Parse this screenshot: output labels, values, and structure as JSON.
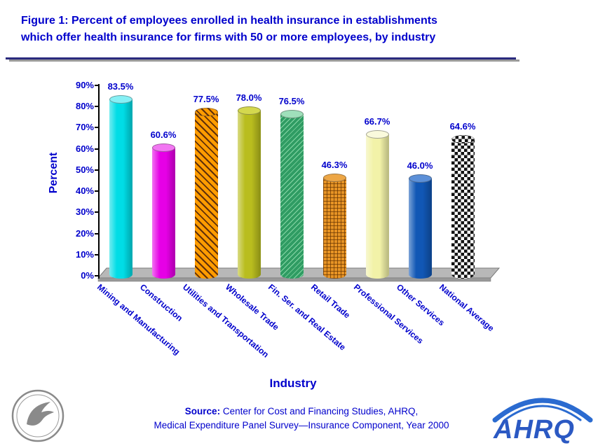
{
  "title": {
    "line1": "Figure 1: Percent of employees enrolled in health insurance in establishments",
    "line2": "which offer health insurance for firms with 50 or more employees, by industry"
  },
  "chart_data": {
    "type": "bar",
    "title": "Percent of employees enrolled in health insurance in establishments which offer health insurance for firms with 50 or more employees, by industry",
    "categories": [
      "Mining and Manufacturing",
      "Construction",
      "Utilities and Transportation",
      "Wholesale Trade",
      "Fin. Ser. and Real Estate",
      "Retail Trade",
      "Professional Services",
      "Other Services",
      "National Average"
    ],
    "values": [
      83.5,
      60.6,
      77.5,
      78.0,
      76.5,
      46.3,
      66.7,
      46.0,
      64.6
    ],
    "labels": [
      "83.5%",
      "60.6%",
      "77.5%",
      "78.0%",
      "76.5%",
      "46.3%",
      "66.7%",
      "46.0%",
      "64.6%"
    ],
    "xlabel": "Industry",
    "ylabel": "Percent",
    "ylim": [
      0,
      90
    ],
    "ytick_step": 10,
    "yticks": [
      "0%",
      "10%",
      "20%",
      "30%",
      "40%",
      "50%",
      "60%",
      "70%",
      "80%",
      "90%"
    ],
    "grid": false,
    "legend": "none",
    "bar_styles": [
      {
        "style": "cyan",
        "fill": "#00dde6",
        "pattern": "solid"
      },
      {
        "style": "magenta",
        "fill": "#e600e6",
        "pattern": "solid"
      },
      {
        "style": "orangestripe",
        "fill": "#ff9c00",
        "pattern": "diagonal-stripes"
      },
      {
        "style": "olive",
        "fill": "#b9bd1e",
        "pattern": "solid"
      },
      {
        "style": "green",
        "fill": "#3aa86d",
        "pattern": "light-diagonal"
      },
      {
        "style": "orangegrid",
        "fill": "#e79425",
        "pattern": "grid"
      },
      {
        "style": "paleyellow",
        "fill": "#f2f2a8",
        "pattern": "solid"
      },
      {
        "style": "blue",
        "fill": "#1157b5",
        "pattern": "solid"
      },
      {
        "style": "checker",
        "fill": "#ffffff",
        "pattern": "checkerboard"
      }
    ]
  },
  "source": {
    "label": "Source:",
    "line1": " Center for Cost and Financing Studies, AHRQ,",
    "line2": "Medical Expenditure Panel Survey—Insurance Component, Year 2000"
  },
  "logos": {
    "ahrq": "AHRQ"
  },
  "colors": {
    "text_blue": "#0000cc",
    "rule": "#2a2a7e",
    "floor": "#b5b5b5",
    "ahrq_blue": "#2b59c3",
    "hhs_gray": "#8a8a8a"
  }
}
